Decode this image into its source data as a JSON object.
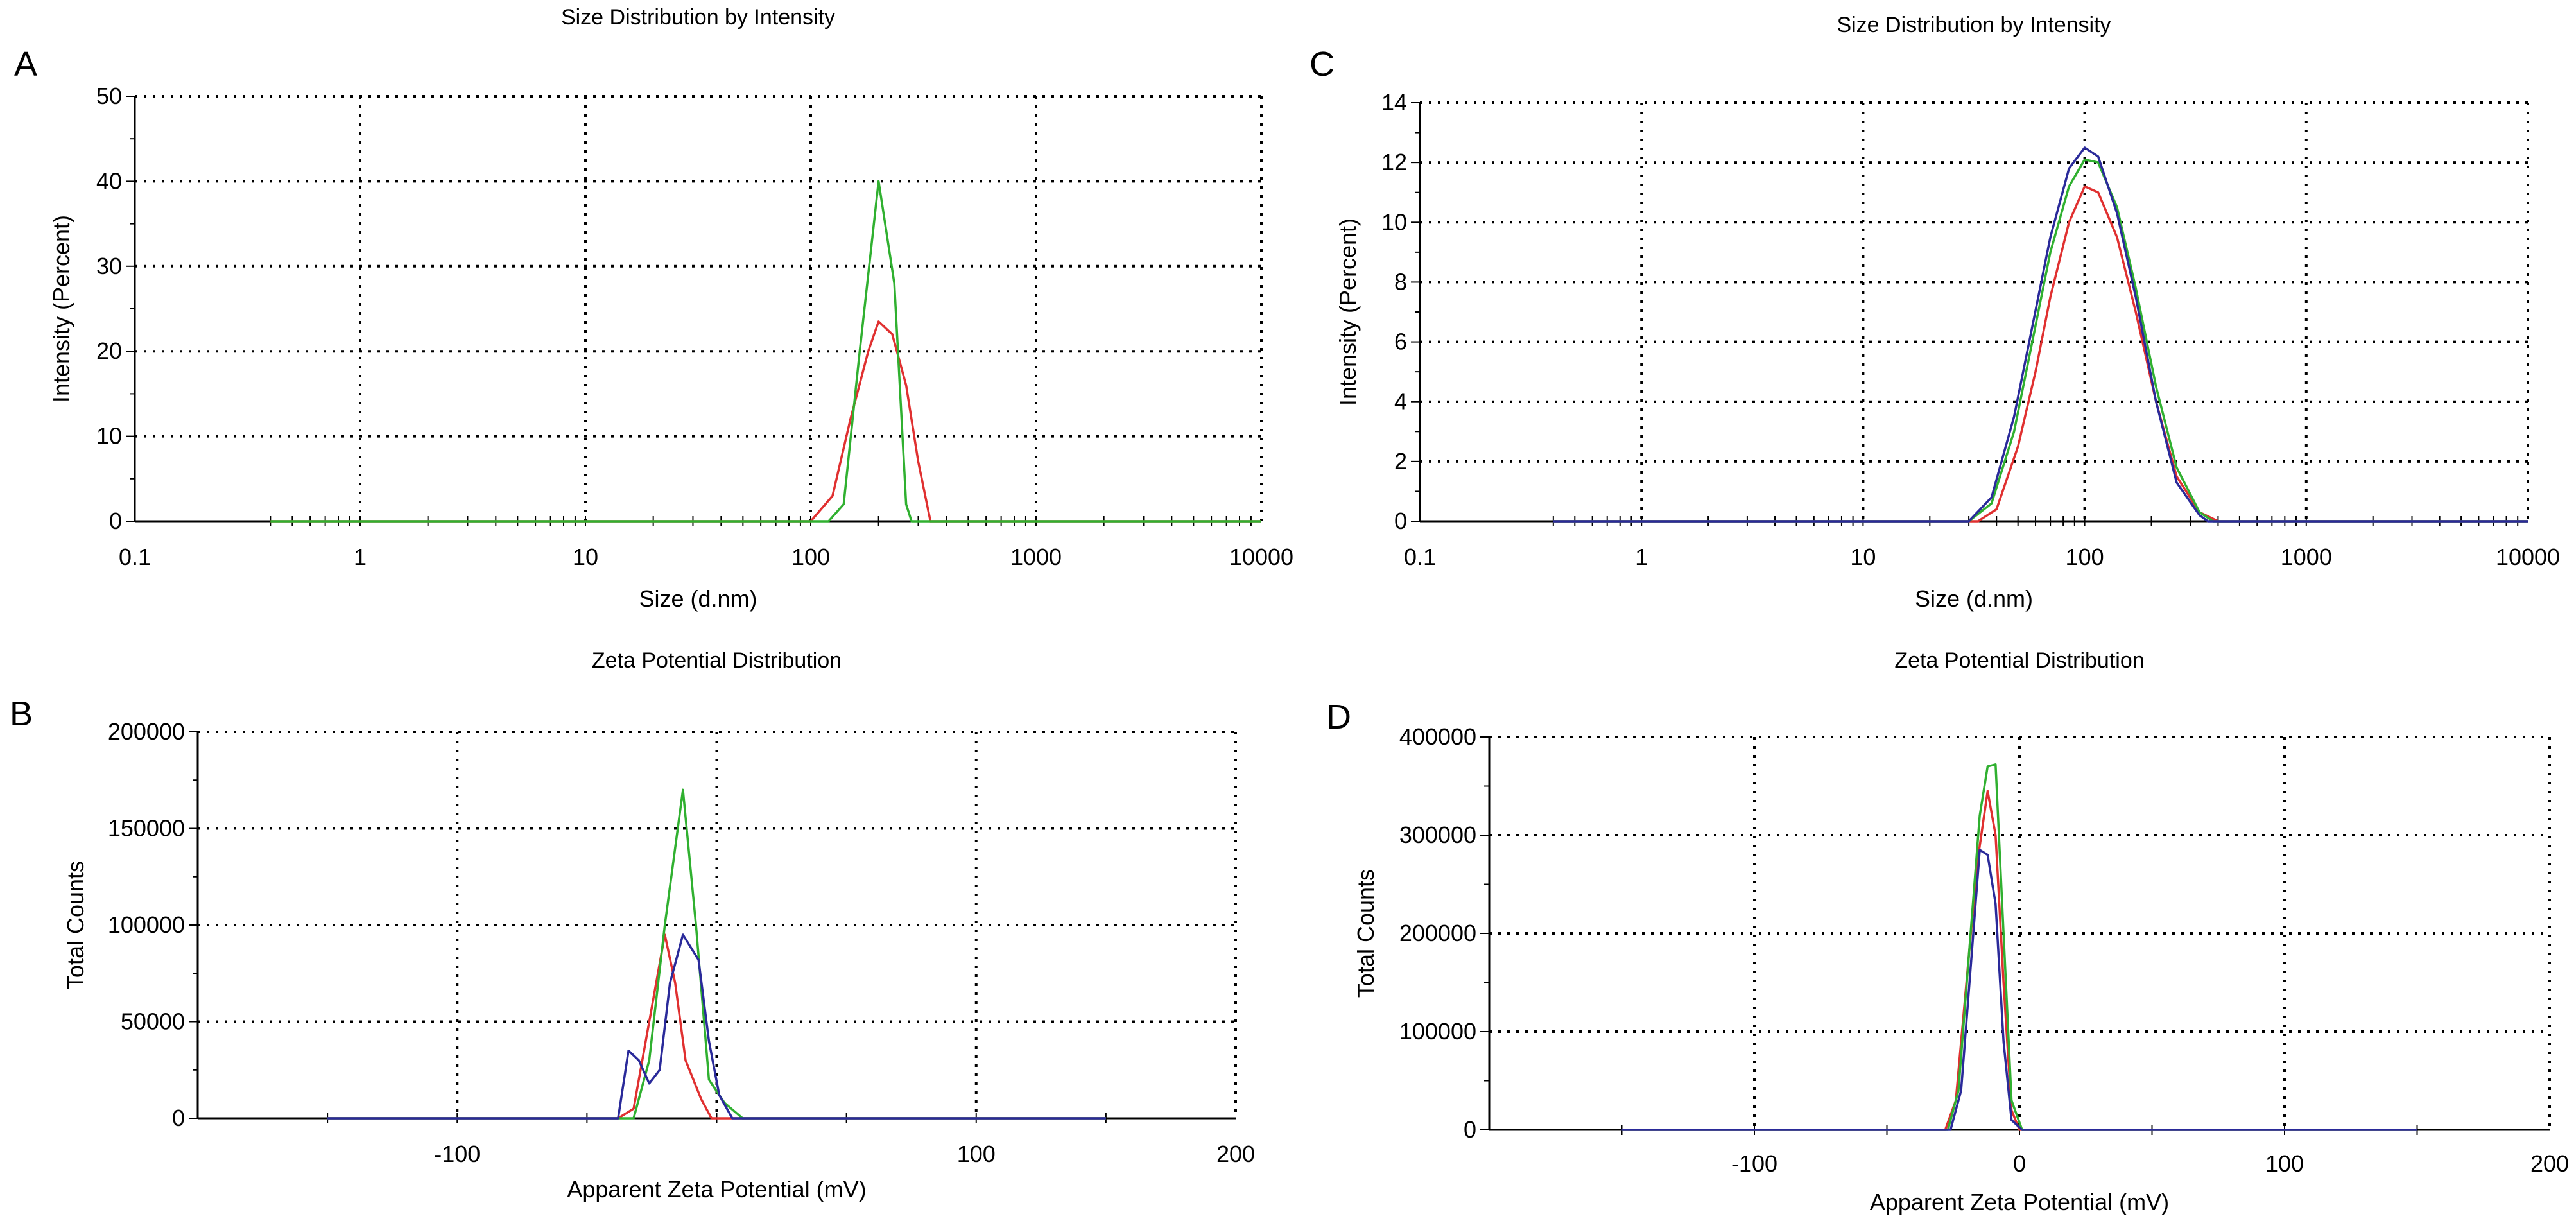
{
  "chart_data": [
    {
      "id": "A",
      "panel_label": "A",
      "type": "line",
      "title": "Size Distribution by Intensity",
      "xlabel": "Size (d.nm)",
      "ylabel": "Intensity (Percent)",
      "xscale": "log",
      "xlim": [
        0.1,
        10000
      ],
      "ylim": [
        0,
        50
      ],
      "xticks": [
        0.1,
        1,
        10,
        100,
        1000,
        10000
      ],
      "xtick_labels": [
        "0.1",
        "1",
        "10",
        "100",
        "1000",
        "10000"
      ],
      "yticks": [
        0,
        10,
        20,
        30,
        40,
        50
      ],
      "ytick_labels": [
        "0",
        "10",
        "20",
        "30",
        "40",
        "50"
      ],
      "baseline_range": [
        0.4,
        10000
      ],
      "grid": true,
      "series": [
        {
          "name": "red",
          "color": "#e03030",
          "points": [
            [
              0.4,
              0
            ],
            [
              100,
              0
            ],
            [
              125,
              3
            ],
            [
              150,
              12
            ],
            [
              180,
              20
            ],
            [
              200,
              23.5
            ],
            [
              230,
              22
            ],
            [
              265,
              16
            ],
            [
              300,
              7
            ],
            [
              340,
              0
            ],
            [
              10000,
              0
            ]
          ]
        },
        {
          "name": "green",
          "color": "#30b030",
          "points": [
            [
              0.4,
              0
            ],
            [
              120,
              0
            ],
            [
              140,
              2
            ],
            [
              165,
              20
            ],
            [
              200,
              40
            ],
            [
              235,
              28
            ],
            [
              265,
              2
            ],
            [
              280,
              0
            ],
            [
              10000,
              0
            ]
          ]
        }
      ]
    },
    {
      "id": "C",
      "panel_label": "C",
      "type": "line",
      "title": "Size Distribution by Intensity",
      "xlabel": "Size (d.nm)",
      "ylabel": "Intensity (Percent)",
      "xscale": "log",
      "xlim": [
        0.1,
        10000
      ],
      "ylim": [
        0,
        14
      ],
      "xticks": [
        0.1,
        1,
        10,
        100,
        1000,
        10000
      ],
      "xtick_labels": [
        "0.1",
        "1",
        "10",
        "100",
        "1000",
        "10000"
      ],
      "yticks": [
        0,
        2,
        4,
        6,
        8,
        10,
        12,
        14
      ],
      "ytick_labels": [
        "0",
        "2",
        "4",
        "6",
        "8",
        "10",
        "12",
        "14"
      ],
      "baseline_range": [
        0.4,
        10000
      ],
      "grid": true,
      "series": [
        {
          "name": "red",
          "color": "#e03030",
          "points": [
            [
              0.4,
              0
            ],
            [
              33,
              0
            ],
            [
              40,
              0.4
            ],
            [
              50,
              2.5
            ],
            [
              60,
              5
            ],
            [
              70,
              7.5
            ],
            [
              85,
              10
            ],
            [
              100,
              11.2
            ],
            [
              115,
              11
            ],
            [
              140,
              9.5
            ],
            [
              170,
              7
            ],
            [
              210,
              4
            ],
            [
              260,
              1.5
            ],
            [
              330,
              0.3
            ],
            [
              400,
              0
            ],
            [
              10000,
              0
            ]
          ]
        },
        {
          "name": "green",
          "color": "#30b030",
          "points": [
            [
              0.4,
              0
            ],
            [
              30,
              0
            ],
            [
              38,
              0.6
            ],
            [
              48,
              3
            ],
            [
              58,
              6
            ],
            [
              70,
              9
            ],
            [
              85,
              11.2
            ],
            [
              100,
              12.1
            ],
            [
              115,
              12
            ],
            [
              140,
              10.5
            ],
            [
              170,
              7.8
            ],
            [
              210,
              4.5
            ],
            [
              260,
              1.8
            ],
            [
              330,
              0.3
            ],
            [
              380,
              0
            ],
            [
              10000,
              0
            ]
          ]
        },
        {
          "name": "blue",
          "color": "#2a2a9a",
          "points": [
            [
              0.4,
              0
            ],
            [
              30,
              0
            ],
            [
              38,
              0.8
            ],
            [
              48,
              3.5
            ],
            [
              58,
              6.5
            ],
            [
              70,
              9.5
            ],
            [
              85,
              11.8
            ],
            [
              100,
              12.5
            ],
            [
              115,
              12.2
            ],
            [
              140,
              10.3
            ],
            [
              170,
              7.5
            ],
            [
              210,
              4
            ],
            [
              260,
              1.3
            ],
            [
              330,
              0.2
            ],
            [
              360,
              0
            ],
            [
              10000,
              0
            ]
          ]
        }
      ]
    },
    {
      "id": "B",
      "panel_label": "B",
      "type": "line",
      "title": "Zeta Potential Distribution",
      "xlabel": "Apparent Zeta Potential (mV)",
      "ylabel": "Total Counts",
      "xscale": "linear",
      "xlim": [
        -200,
        200
      ],
      "ylim": [
        0,
        200000
      ],
      "xticks": [
        -100,
        0,
        100,
        200
      ],
      "xtick_labels": [
        "-100",
        "",
        "100",
        "200"
      ],
      "xgrid": [
        -100,
        0,
        100
      ],
      "yticks": [
        0,
        50000,
        100000,
        150000,
        200000
      ],
      "ytick_labels": [
        "0",
        "50000",
        "100000",
        "150000",
        "200000"
      ],
      "baseline_range": [
        -150,
        150
      ],
      "grid": true,
      "series": [
        {
          "name": "red",
          "color": "#e03030",
          "points": [
            [
              -150,
              0
            ],
            [
              -38,
              0
            ],
            [
              -32,
              5000
            ],
            [
              -26,
              50000
            ],
            [
              -20,
              95000
            ],
            [
              -16,
              70000
            ],
            [
              -12,
              30000
            ],
            [
              -6,
              10000
            ],
            [
              -2,
              0
            ],
            [
              150,
              0
            ]
          ]
        },
        {
          "name": "green",
          "color": "#30b030",
          "points": [
            [
              -150,
              0
            ],
            [
              -32,
              0
            ],
            [
              -26,
              30000
            ],
            [
              -20,
              100000
            ],
            [
              -13,
              170000
            ],
            [
              -8,
              100000
            ],
            [
              -3,
              20000
            ],
            [
              3,
              8000
            ],
            [
              10,
              0
            ],
            [
              150,
              0
            ]
          ]
        },
        {
          "name": "blue",
          "color": "#2a2a9a",
          "points": [
            [
              -150,
              0
            ],
            [
              -38,
              0
            ],
            [
              -34,
              35000
            ],
            [
              -30,
              30000
            ],
            [
              -26,
              18000
            ],
            [
              -22,
              25000
            ],
            [
              -18,
              70000
            ],
            [
              -13,
              95000
            ],
            [
              -7,
              82000
            ],
            [
              -3,
              40000
            ],
            [
              1,
              12000
            ],
            [
              6,
              0
            ],
            [
              150,
              0
            ]
          ]
        }
      ]
    },
    {
      "id": "D",
      "panel_label": "D",
      "type": "line",
      "title": "Zeta Potential Distribution",
      "xlabel": "Apparent Zeta Potential (mV)",
      "ylabel": "Total Counts",
      "xscale": "linear",
      "xlim": [
        -200,
        200
      ],
      "ylim": [
        0,
        400000
      ],
      "xticks": [
        -100,
        0,
        100,
        200
      ],
      "xtick_labels": [
        "-100",
        "0",
        "100",
        "200"
      ],
      "xgrid": [
        -100,
        0,
        100
      ],
      "yticks": [
        0,
        100000,
        200000,
        300000,
        400000
      ],
      "ytick_labels": [
        "0",
        "100000",
        "200000",
        "300000",
        "400000"
      ],
      "baseline_range": [
        -150,
        150
      ],
      "grid": true,
      "series": [
        {
          "name": "red",
          "color": "#e03030",
          "points": [
            [
              -150,
              0
            ],
            [
              -28,
              0
            ],
            [
              -24,
              30000
            ],
            [
              -20,
              150000
            ],
            [
              -16,
              270000
            ],
            [
              -12,
              345000
            ],
            [
              -9,
              300000
            ],
            [
              -6,
              150000
            ],
            [
              -3,
              20000
            ],
            [
              0,
              0
            ],
            [
              150,
              0
            ]
          ]
        },
        {
          "name": "green",
          "color": "#30b030",
          "points": [
            [
              -150,
              0
            ],
            [
              -27,
              0
            ],
            [
              -23,
              40000
            ],
            [
              -19,
              180000
            ],
            [
              -15,
              320000
            ],
            [
              -12,
              370000
            ],
            [
              -9,
              372000
            ],
            [
              -6,
              200000
            ],
            [
              -3,
              30000
            ],
            [
              1,
              0
            ],
            [
              150,
              0
            ]
          ]
        },
        {
          "name": "blue",
          "color": "#2a2a9a",
          "points": [
            [
              -150,
              0
            ],
            [
              -26,
              0
            ],
            [
              -22,
              40000
            ],
            [
              -18,
              180000
            ],
            [
              -15,
              285000
            ],
            [
              -12,
              280000
            ],
            [
              -9,
              230000
            ],
            [
              -6,
              90000
            ],
            [
              -3,
              10000
            ],
            [
              1,
              0
            ],
            [
              150,
              0
            ]
          ]
        }
      ]
    }
  ]
}
